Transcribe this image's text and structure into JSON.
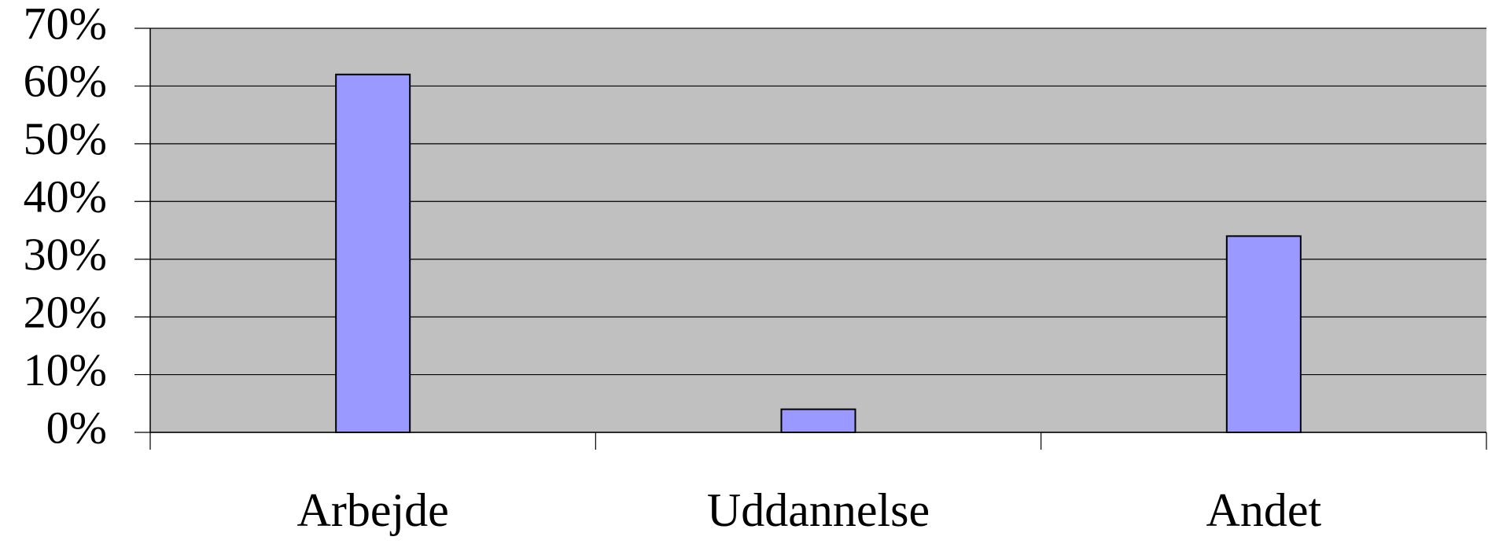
{
  "chart_data": {
    "type": "bar",
    "categories": [
      "Arbejde",
      "Uddannelse",
      "Andet"
    ],
    "values": [
      62,
      4,
      34
    ],
    "color": "#9999ff",
    "ylim": [
      0,
      70
    ],
    "yticks": [
      {
        "value": 0,
        "label": "0%"
      },
      {
        "value": 10,
        "label": "10%"
      },
      {
        "value": 20,
        "label": "20%"
      },
      {
        "value": 30,
        "label": "30%"
      },
      {
        "value": 40,
        "label": "40%"
      },
      {
        "value": 50,
        "label": "50%"
      },
      {
        "value": 60,
        "label": "60%"
      },
      {
        "value": 70,
        "label": "70%"
      }
    ],
    "grid": true
  }
}
